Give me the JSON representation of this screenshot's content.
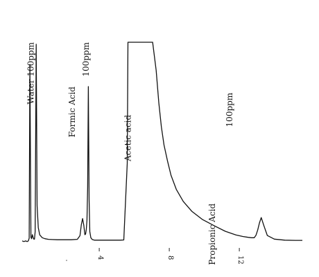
{
  "chart_data": {
    "type": "line",
    "xlabel": "",
    "ylabel": "",
    "xlim": [
      -0.4,
      15.6
    ],
    "ylim": [
      0,
      100
    ],
    "x_ticks": [
      4,
      8,
      12
    ],
    "annotations": [
      {
        "text": "Water 100ppm",
        "x": 0.25,
        "y": 100
      },
      {
        "text": "Formic Acid",
        "x": 2.6,
        "y": 78
      },
      {
        "text": "100ppm",
        "x": 3.4,
        "y": 100
      },
      {
        "text": "Acetic acid",
        "x": 5.8,
        "y": 64
      },
      {
        "text": "Propionic Acid",
        "x": 10.6,
        "y": 20
      },
      {
        "text": "100ppm",
        "x": 11.6,
        "y": 75
      }
    ],
    "series": [
      {
        "color": "#111111",
        "x": [
          -0.4,
          -0.3,
          -0.2,
          -0.12,
          -0.05,
          0.0,
          0.04,
          0.1,
          0.14,
          0.18,
          0.22,
          0.26,
          0.3,
          0.34,
          0.4,
          0.45,
          0.52,
          0.6,
          0.75,
          0.9,
          1.1,
          1.3,
          1.6,
          2.0,
          2.4,
          2.75,
          2.9,
          2.98,
          3.05,
          3.12,
          3.18,
          3.22,
          3.26,
          3.3,
          3.34,
          3.38,
          3.42,
          3.46,
          3.52,
          3.6,
          3.72,
          3.85,
          4.05,
          4.3,
          4.7,
          5.2,
          5.4,
          5.6,
          5.64,
          5.8,
          6.2,
          7.05,
          7.25,
          7.4,
          7.55,
          7.7,
          7.9,
          8.1,
          8.4,
          8.8,
          9.3,
          9.9,
          10.6,
          11.2,
          11.8,
          12.2,
          12.5,
          12.7,
          12.85,
          12.95,
          13.05,
          13.15,
          13.25,
          13.4,
          13.6,
          14.0,
          14.6,
          15.2,
          15.6
        ],
        "y": [
          1.4,
          1.1,
          1.4,
          1.1,
          1.4,
          2.8,
          89,
          3.2,
          2.5,
          4.5,
          3.2,
          2.3,
          2.3,
          6.0,
          99,
          19,
          8.0,
          4.4,
          3.0,
          2.5,
          2.2,
          2.1,
          2.0,
          2.0,
          2.0,
          2.2,
          4.0,
          9.5,
          12.5,
          9.0,
          4.5,
          4.8,
          7.0,
          11.5,
          28,
          78,
          22,
          6.0,
          3.0,
          2.1,
          1.8,
          1.8,
          1.8,
          1.8,
          1.8,
          1.8,
          1.9,
          40,
          100,
          100,
          100,
          100,
          86,
          70,
          58,
          49,
          41,
          34,
          27,
          21,
          16,
          12,
          8.8,
          6.2,
          4.4,
          3.6,
          3.2,
          3.0,
          3.0,
          4.2,
          6.8,
          10.3,
          13.0,
          9.0,
          4.1,
          2.3,
          1.8,
          1.7,
          1.7
        ]
      }
    ]
  }
}
